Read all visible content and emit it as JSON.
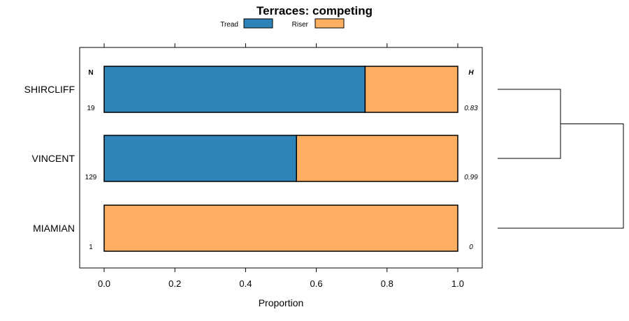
{
  "chart_data": {
    "type": "bar",
    "orientation": "horizontal",
    "stacked": true,
    "title": "Terraces: competing",
    "xlabel": "Proportion",
    "xlim": [
      -0.07,
      1.07
    ],
    "xticks": [
      "0.0",
      "0.2",
      "0.4",
      "0.6",
      "0.8",
      "1.0"
    ],
    "xtick_values": [
      0,
      0.2,
      0.4,
      0.6,
      0.8,
      1.0
    ],
    "categories": [
      "SHIRCLIFF",
      "VINCENT",
      "MIAMIAN"
    ],
    "series": [
      {
        "name": "Tread",
        "color": "#2e83b8",
        "values": [
          0.738,
          0.544,
          0.0
        ]
      },
      {
        "name": "Riser",
        "color": "#fdae61",
        "values": [
          0.262,
          0.456,
          1.0
        ]
      }
    ],
    "n_header": "N",
    "h_header": "H",
    "n_values": [
      "19",
      "129",
      "1"
    ],
    "h_values": [
      "0.83",
      "0.99",
      "0"
    ],
    "legend_position": "top",
    "dendrogram": {
      "merges": [
        [
          0,
          1,
          0.5
        ],
        [
          2,
          "c0",
          1.0
        ]
      ]
    }
  }
}
